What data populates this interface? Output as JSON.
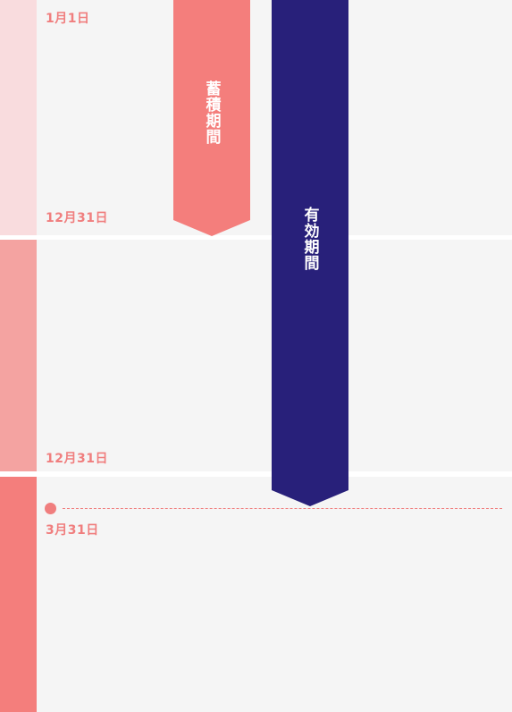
{
  "colors": {
    "background": "#f5f5f5",
    "strip_year1": "#f9dcde",
    "strip_year2": "#f4a3a1",
    "strip_year3": "#f47e7c",
    "accumulation_arrow": "#f47e7c",
    "validity_arrow": "#28207a",
    "date_text": "#f07e7e"
  },
  "dates": {
    "start": "1月1日",
    "end_year1": "12月31日",
    "end_year2": "12月31日",
    "expiry": "3月31日"
  },
  "periods": {
    "accumulation": "蓄積期間",
    "validity": "有効期間"
  }
}
